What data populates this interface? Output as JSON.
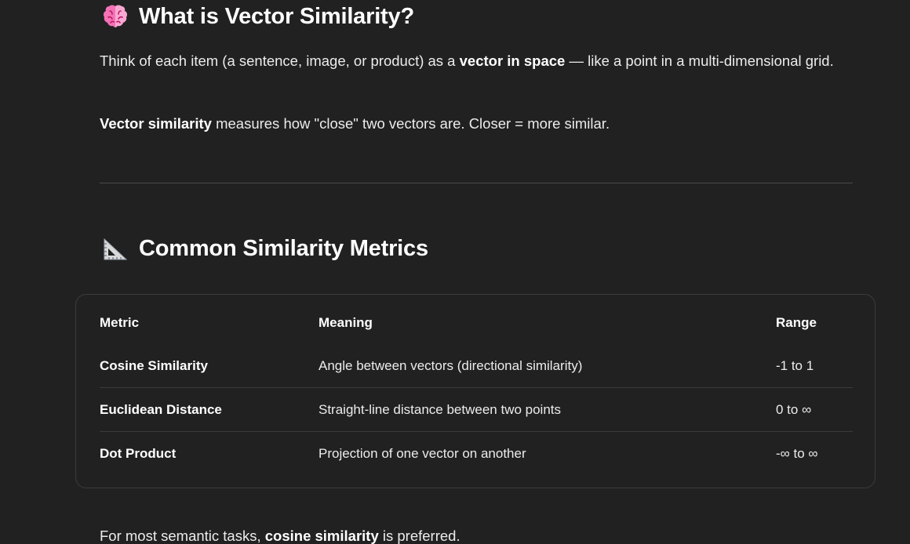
{
  "section1": {
    "emoji_icon": "brain-emoji-icon",
    "heading": "What is Vector Similarity?",
    "para1": {
      "before": "Think of each item (a sentence, image, or product) as a ",
      "bold": "vector in space",
      "after": " — like a point in a multi-dimensional grid."
    },
    "para2": {
      "bold": "Vector similarity",
      "after": " measures how \"close\" two vectors are. Closer = more similar."
    }
  },
  "section2": {
    "emoji_icon": "triangular-ruler-emoji-icon",
    "heading": "Common Similarity Metrics",
    "table": {
      "headers": [
        "Metric",
        "Meaning",
        "Range"
      ],
      "rows": [
        {
          "metric": "Cosine Similarity",
          "meaning": "Angle between vectors (directional similarity)",
          "range": "-1 to 1"
        },
        {
          "metric": "Euclidean Distance",
          "meaning": "Straight-line distance between two points",
          "range": "0 to ∞"
        },
        {
          "metric": "Dot Product",
          "meaning": "Projection of one vector on another",
          "range": "-∞ to ∞"
        }
      ]
    }
  },
  "footer_para": {
    "before": "For most semantic tasks, ",
    "bold": "cosine similarity",
    "after": " is preferred."
  },
  "colors": {
    "background": "#212121",
    "text": "#ececec",
    "emoji_brain": "#f472b6",
    "emoji_ruler": "#d9d9d9"
  }
}
